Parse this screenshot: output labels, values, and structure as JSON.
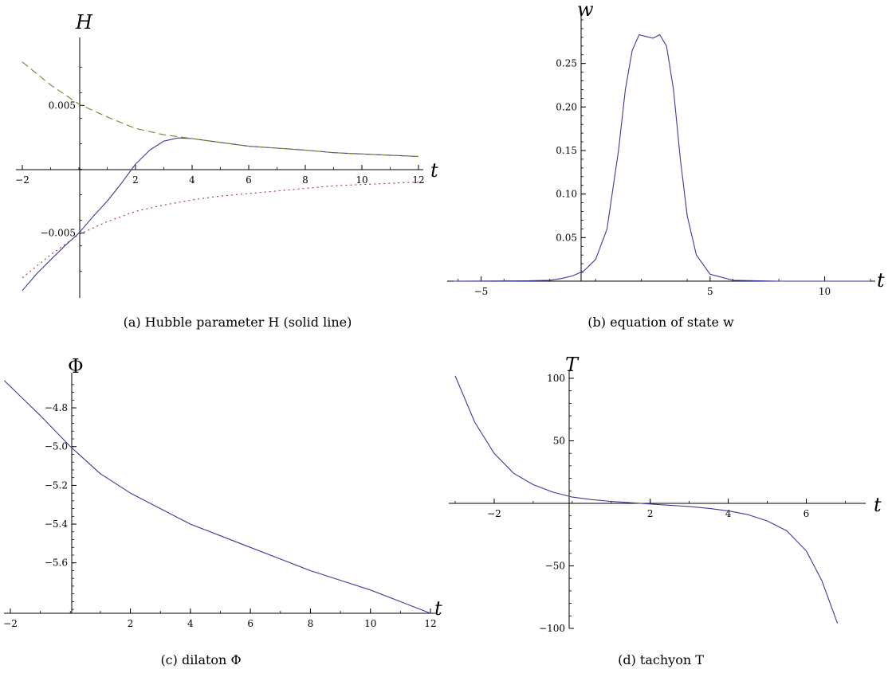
{
  "chart_data": [
    {
      "type": "line",
      "caption": "(a)  Hubble parameter H (solid line)",
      "xlabel": "t",
      "ylabel": "H",
      "xlim": [
        -2,
        12
      ],
      "ylim": [
        -0.0097,
        0.0097
      ],
      "x_ticks": [
        "-2",
        "2",
        "4",
        "6",
        "8",
        "10",
        "12"
      ],
      "x_tick_values": [
        -2,
        2,
        4,
        6,
        8,
        10,
        12
      ],
      "y_ticks": [
        "0.005",
        "-0.005"
      ],
      "y_tick_values": [
        0.005,
        -0.005
      ],
      "series": [
        {
          "style": "solid",
          "color": "#3a3a9a",
          "x": [
            -2,
            -1.5,
            -1,
            -0.5,
            0,
            0.5,
            1,
            1.5,
            2,
            2.5,
            3,
            3.5,
            4,
            5,
            6,
            7,
            8,
            9,
            10,
            11,
            12
          ],
          "y": [
            -0.0095,
            -0.0082,
            -0.0071,
            -0.006,
            -0.005,
            -0.0037,
            -0.0025,
            -0.0011,
            0.0004,
            0.0015,
            0.0022,
            0.00245,
            0.0024,
            0.0021,
            0.0018,
            0.00165,
            0.0015,
            0.0013,
            0.0012,
            0.0011,
            0.001
          ]
        },
        {
          "style": "dashed",
          "color": "#8a7a2a",
          "x": [
            -2,
            -1,
            0,
            1,
            2,
            3,
            4,
            5,
            6,
            7,
            8,
            9,
            10,
            11,
            12
          ],
          "y": [
            0.0084,
            0.0066,
            0.0051,
            0.0041,
            0.0032,
            0.0027,
            0.0024,
            0.0021,
            0.0018,
            0.00165,
            0.0015,
            0.0013,
            0.0012,
            0.0011,
            0.001
          ]
        },
        {
          "style": "dotted",
          "color": "#a0304a",
          "x": [
            -2,
            -1,
            0,
            1,
            2,
            3,
            4,
            5,
            6,
            7,
            8,
            9,
            10,
            11,
            12
          ],
          "y": [
            -0.0085,
            -0.0067,
            -0.0051,
            -0.0041,
            -0.0033,
            -0.0028,
            -0.0024,
            -0.0021,
            -0.0019,
            -0.0017,
            -0.0015,
            -0.0013,
            -0.0012,
            -0.0011,
            -0.001
          ]
        }
      ]
    },
    {
      "type": "line",
      "caption": "(b)  equation of state w",
      "xlabel": "t",
      "ylabel": "w",
      "xlim": [
        -6.2,
        12
      ],
      "ylim": [
        0,
        0.3
      ],
      "x_ticks": [
        "-5",
        "5",
        "10"
      ],
      "x_tick_values": [
        -5,
        5,
        10
      ],
      "y_ticks": [
        "0.05",
        "0.10",
        "0.15",
        "0.20",
        "0.25"
      ],
      "y_tick_values": [
        0.05,
        0.1,
        0.15,
        0.2,
        0.25
      ],
      "series": [
        {
          "style": "solid",
          "color": "#3a3a9a",
          "x": [
            -6.2,
            -3,
            -2,
            -1.5,
            -1,
            -0.5,
            0,
            0.5,
            1,
            1.3,
            1.6,
            1.9,
            2.2,
            2.5,
            2.8,
            3.1,
            3.4,
            3.7,
            4,
            4.4,
            5,
            6,
            8,
            12
          ],
          "y": [
            0,
            0.0005,
            0.001,
            0.003,
            0.006,
            0.012,
            0.025,
            0.06,
            0.15,
            0.22,
            0.265,
            0.283,
            0.281,
            0.279,
            0.283,
            0.27,
            0.22,
            0.14,
            0.075,
            0.03,
            0.008,
            0.001,
            0,
            0
          ]
        }
      ]
    },
    {
      "type": "line",
      "caption": "(c)  dilaton Φ",
      "xlabel": "t",
      "ylabel": "Φ",
      "xlim": [
        -2,
        12
      ],
      "ylim": [
        -5.86,
        -4.66
      ],
      "x_ticks": [
        "-2",
        "2",
        "4",
        "6",
        "8",
        "10",
        "12"
      ],
      "x_tick_values": [
        -2,
        2,
        4,
        6,
        8,
        10,
        12
      ],
      "y_ticks": [
        "-4.8",
        "-5.0",
        "-5.2",
        "-5.4",
        "-5.6"
      ],
      "y_tick_values": [
        -4.8,
        -5.0,
        -5.2,
        -5.4,
        -5.6
      ],
      "series": [
        {
          "style": "solid",
          "color": "#3a3a9a",
          "x": [
            -2.2,
            -1,
            0,
            1,
            2,
            3,
            4,
            5,
            6,
            7,
            8,
            9,
            10,
            11,
            12
          ],
          "y": [
            -4.66,
            -4.84,
            -5.0,
            -5.14,
            -5.24,
            -5.32,
            -5.4,
            -5.46,
            -5.52,
            -5.58,
            -5.64,
            -5.69,
            -5.74,
            -5.8,
            -5.86
          ]
        }
      ]
    },
    {
      "type": "line",
      "caption": "(d)  tachyon T",
      "xlabel": "t",
      "ylabel": "T",
      "xlim": [
        -3,
        7.4
      ],
      "ylim": [
        -100,
        100
      ],
      "x_ticks": [
        "-2",
        "2",
        "4",
        "6"
      ],
      "x_tick_values": [
        -2,
        2,
        4,
        6
      ],
      "y_ticks": [
        "100",
        "50",
        "-50",
        "-100"
      ],
      "y_tick_values": [
        100,
        50,
        -50,
        -100
      ],
      "series": [
        {
          "style": "solid",
          "color": "#3a3a9a",
          "x": [
            -3,
            -2.5,
            -2,
            -1.5,
            -1,
            -0.5,
            0,
            0.5,
            1,
            1.5,
            2,
            2.5,
            3,
            3.5,
            4,
            4.5,
            5,
            5.5,
            6,
            6.4,
            6.8
          ],
          "y": [
            102,
            65,
            40,
            24,
            15,
            9,
            5,
            3,
            1.5,
            0.5,
            -0.5,
            -1.5,
            -2.5,
            -4,
            -6,
            -9,
            -14,
            -22,
            -38,
            -62,
            -96
          ]
        }
      ]
    }
  ]
}
